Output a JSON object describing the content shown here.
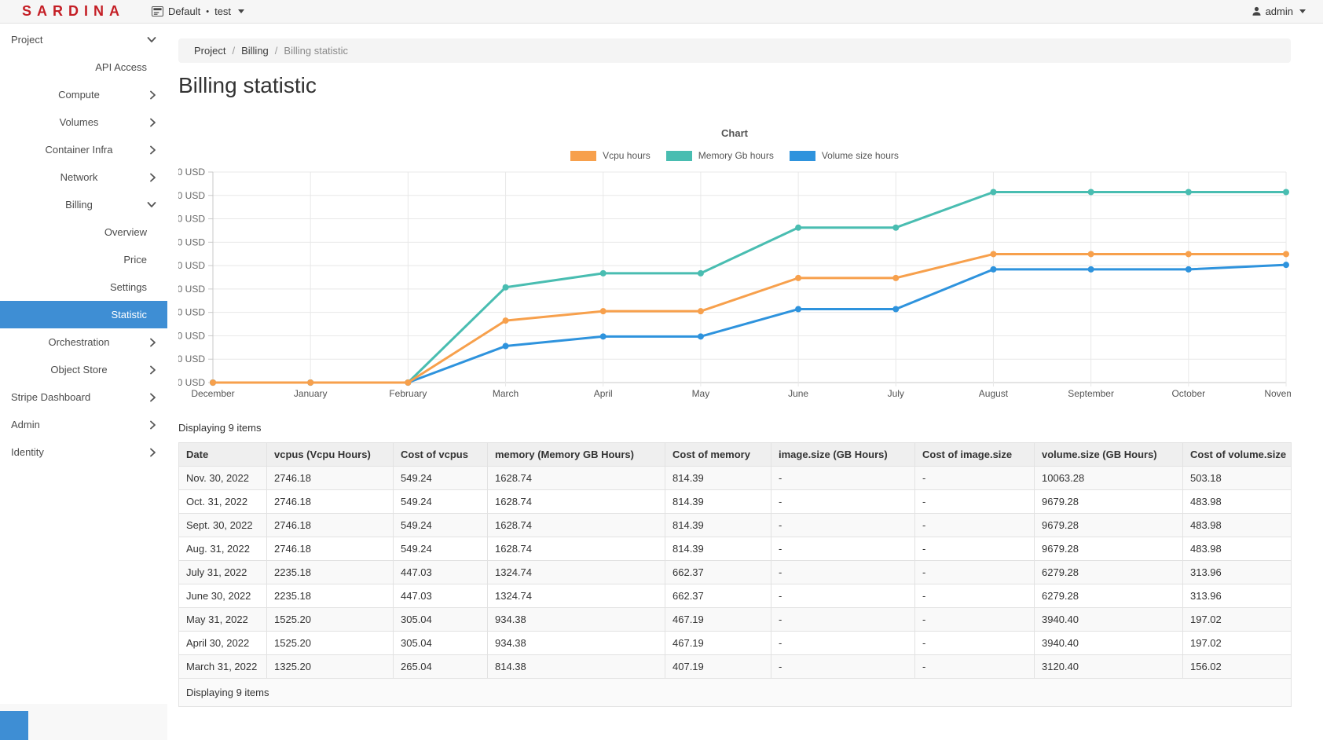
{
  "header": {
    "brand": "SARDINA",
    "context": "Default",
    "context_separator": "•",
    "context_project": "test",
    "user": "admin"
  },
  "sidebar": {
    "items": [
      {
        "label": "Project",
        "level": 1,
        "chevron": "down"
      },
      {
        "label": "API Access",
        "level": 3
      },
      {
        "label": "Compute",
        "level": 2,
        "chevron": "right"
      },
      {
        "label": "Volumes",
        "level": 2,
        "chevron": "right"
      },
      {
        "label": "Container Infra",
        "level": 2,
        "chevron": "right"
      },
      {
        "label": "Network",
        "level": 2,
        "chevron": "right"
      },
      {
        "label": "Billing",
        "level": 2,
        "chevron": "down"
      },
      {
        "label": "Overview",
        "level": 3
      },
      {
        "label": "Price",
        "level": 3
      },
      {
        "label": "Settings",
        "level": 3
      },
      {
        "label": "Statistic",
        "level": 3,
        "active": true
      },
      {
        "label": "Orchestration",
        "level": 2,
        "chevron": "right"
      },
      {
        "label": "Object Store",
        "level": 2,
        "chevron": "right"
      },
      {
        "label": "Stripe Dashboard",
        "level": 1,
        "chevron": "right"
      },
      {
        "label": "Admin",
        "level": 1,
        "chevron": "right"
      },
      {
        "label": "Identity",
        "level": 1,
        "chevron": "right"
      }
    ]
  },
  "breadcrumb": {
    "links": [
      "Project",
      "Billing"
    ],
    "current": "Billing statistic"
  },
  "page": {
    "title": "Billing statistic"
  },
  "chart_data": {
    "type": "line",
    "title": "Chart",
    "categories": [
      "December",
      "January",
      "February",
      "March",
      "April",
      "May",
      "June",
      "July",
      "August",
      "September",
      "October",
      "November"
    ],
    "series": [
      {
        "name": "Vcpu hours",
        "color": "#f7a04c",
        "values": [
          0,
          0,
          0,
          265.04,
          305.04,
          305.04,
          447.03,
          447.03,
          549.24,
          549.24,
          549.24,
          549.24
        ]
      },
      {
        "name": "Memory Gb hours",
        "color": "#49bdb1",
        "values": [
          0,
          0,
          0,
          407.19,
          467.19,
          467.19,
          662.37,
          662.37,
          814.39,
          814.39,
          814.39,
          814.39
        ]
      },
      {
        "name": "Volume size hours",
        "color": "#2e93dd",
        "values": [
          0,
          0,
          0,
          156.02,
          197.02,
          197.02,
          313.96,
          313.96,
          483.98,
          483.98,
          483.98,
          503.18
        ]
      }
    ],
    "ylim": [
      0,
      900
    ],
    "ytick_step": 100,
    "ytick_suffix": " USD",
    "grid": true,
    "legend_position": "top",
    "markers": true
  },
  "table": {
    "count_label": "Displaying 9 items",
    "footer_label": "Displaying 9 items",
    "columns": [
      "Date",
      "vcpus (Vcpu Hours)",
      "Cost of vcpus",
      "memory (Memory GB Hours)",
      "Cost of memory",
      "image.size (GB Hours)",
      "Cost of image.size",
      "volume.size (GB Hours)",
      "Cost of volume.size"
    ],
    "rows": [
      [
        "Nov. 30, 2022",
        "2746.18",
        "549.24",
        "1628.74",
        "814.39",
        "-",
        "-",
        "10063.28",
        "503.18"
      ],
      [
        "Oct. 31, 2022",
        "2746.18",
        "549.24",
        "1628.74",
        "814.39",
        "-",
        "-",
        "9679.28",
        "483.98"
      ],
      [
        "Sept. 30, 2022",
        "2746.18",
        "549.24",
        "1628.74",
        "814.39",
        "-",
        "-",
        "9679.28",
        "483.98"
      ],
      [
        "Aug. 31, 2022",
        "2746.18",
        "549.24",
        "1628.74",
        "814.39",
        "-",
        "-",
        "9679.28",
        "483.98"
      ],
      [
        "July 31, 2022",
        "2235.18",
        "447.03",
        "1324.74",
        "662.37",
        "-",
        "-",
        "6279.28",
        "313.96"
      ],
      [
        "June 30, 2022",
        "2235.18",
        "447.03",
        "1324.74",
        "662.37",
        "-",
        "-",
        "6279.28",
        "313.96"
      ],
      [
        "May 31, 2022",
        "1525.20",
        "305.04",
        "934.38",
        "467.19",
        "-",
        "-",
        "3940.40",
        "197.02"
      ],
      [
        "April 30, 2022",
        "1525.20",
        "305.04",
        "934.38",
        "467.19",
        "-",
        "-",
        "3940.40",
        "197.02"
      ],
      [
        "March 31, 2022",
        "1325.20",
        "265.04",
        "814.38",
        "407.19",
        "-",
        "-",
        "3120.40",
        "156.02"
      ]
    ]
  },
  "colors": {
    "brand_red": "#c41e25",
    "active_nav_blue": "#3e8ed4",
    "vcpu_orange": "#f7a04c",
    "memory_teal": "#49bdb1",
    "volume_blue": "#2e93dd"
  }
}
